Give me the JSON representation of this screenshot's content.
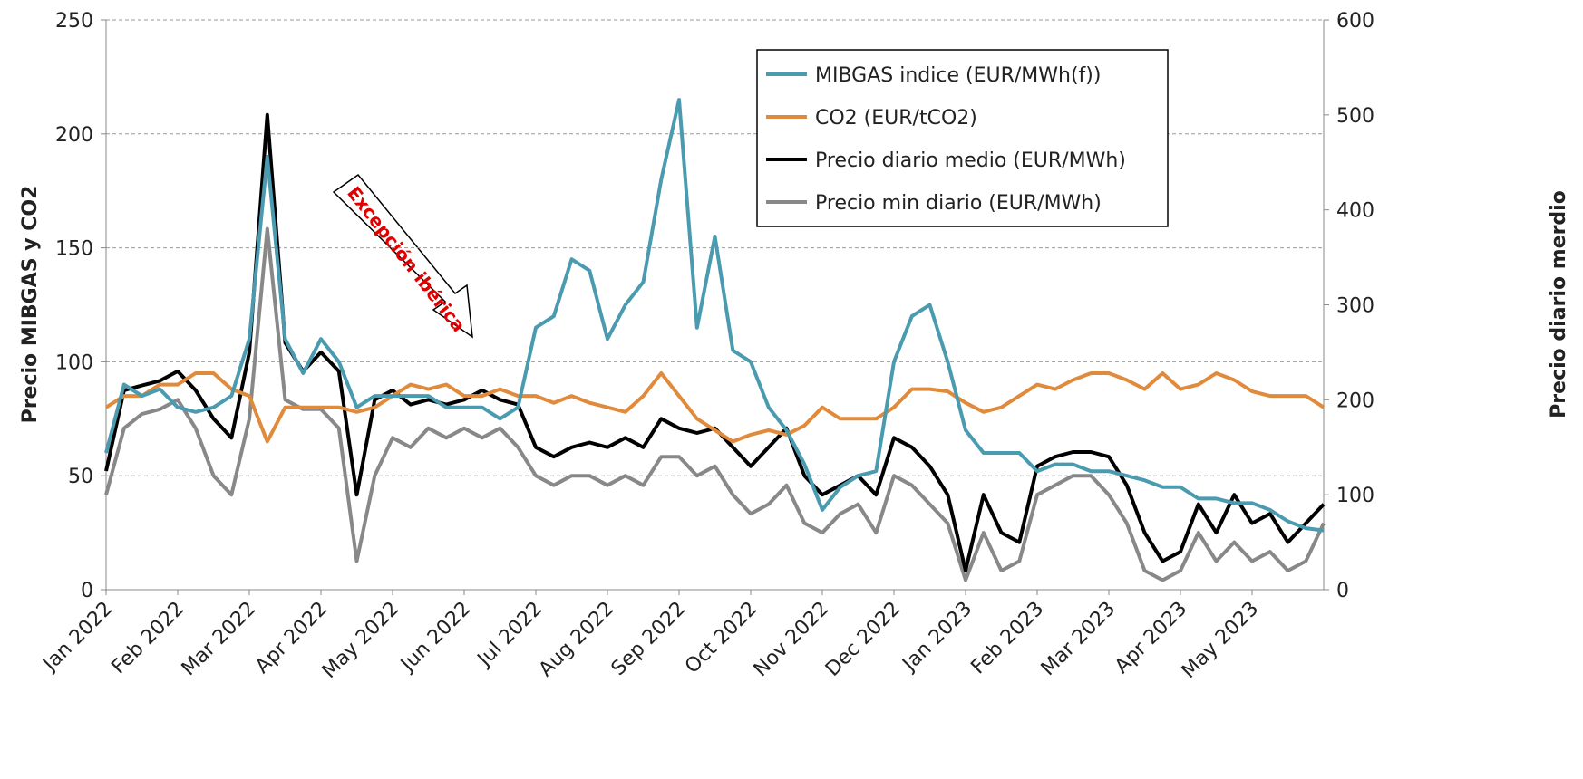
{
  "chart_data": {
    "type": "line",
    "y_label": "Precio MIBGAS y CO2",
    "y2_label": "Precio diario merdio",
    "annotation": "Excepción ibérica",
    "categories": [
      "Jan 2022",
      null,
      null,
      null,
      "Feb 2022",
      null,
      null,
      null,
      "Mar 2022",
      null,
      null,
      null,
      "Apr 2022",
      null,
      null,
      null,
      "May 2022",
      null,
      null,
      null,
      "Jun 2022",
      null,
      null,
      null,
      "Jul 2022",
      null,
      null,
      null,
      "Aug 2022",
      null,
      null,
      null,
      "Sep 2022",
      null,
      null,
      null,
      "Oct 2022",
      null,
      null,
      null,
      "Nov 2022",
      null,
      null,
      null,
      "Dec 2022",
      null,
      null,
      null,
      "Jan 2023",
      null,
      null,
      null,
      "Feb 2023",
      null,
      null,
      null,
      "Mar 2023",
      null,
      null,
      null,
      "Apr 2023",
      null,
      null,
      null,
      "May 2023",
      null,
      null,
      null,
      null
    ],
    "ylim": [
      0,
      250
    ],
    "yticks": [
      0,
      50,
      100,
      150,
      200,
      250
    ],
    "y2lim": [
      0,
      600
    ],
    "y2ticks": [
      0,
      100,
      200,
      300,
      400,
      500,
      600
    ],
    "grid": true,
    "legend": "upper right",
    "series": [
      {
        "name": "MIBGAS indice (EUR/MWh(f))",
        "color": "#4a9bb0",
        "axis": "y",
        "values": [
          60,
          90,
          85,
          88,
          80,
          78,
          80,
          85,
          110,
          190,
          110,
          95,
          110,
          100,
          80,
          85,
          85,
          85,
          85,
          80,
          80,
          80,
          75,
          80,
          115,
          120,
          145,
          140,
          110,
          125,
          135,
          180,
          215,
          115,
          155,
          105,
          100,
          80,
          70,
          55,
          35,
          45,
          50,
          52,
          100,
          120,
          125,
          100,
          70,
          60,
          60,
          60,
          52,
          55,
          55,
          52,
          52,
          50,
          48,
          45,
          45,
          40,
          40,
          38,
          38,
          35,
          30,
          27,
          26
        ]
      },
      {
        "name": "CO2 (EUR/tCO2)",
        "color": "#e08a3c",
        "axis": "y",
        "values": [
          80,
          85,
          85,
          90,
          90,
          95,
          95,
          88,
          85,
          65,
          80,
          80,
          80,
          80,
          78,
          80,
          85,
          90,
          88,
          90,
          85,
          85,
          88,
          85,
          85,
          82,
          85,
          82,
          80,
          78,
          85,
          95,
          85,
          75,
          70,
          65,
          68,
          70,
          68,
          72,
          80,
          75,
          75,
          75,
          80,
          88,
          88,
          87,
          82,
          78,
          80,
          85,
          90,
          88,
          92,
          95,
          95,
          92,
          88,
          95,
          88,
          90,
          95,
          92,
          87,
          85,
          85,
          85,
          80
        ]
      },
      {
        "name": "Precio diario medio (EUR/MWh)",
        "color": "#000000",
        "axis": "y2",
        "values": [
          125,
          210,
          215,
          220,
          230,
          210,
          180,
          160,
          250,
          500,
          260,
          230,
          250,
          230,
          100,
          200,
          210,
          195,
          200,
          195,
          200,
          210,
          200,
          195,
          150,
          140,
          150,
          155,
          150,
          160,
          150,
          180,
          170,
          165,
          170,
          150,
          130,
          150,
          170,
          120,
          100,
          110,
          120,
          100,
          160,
          150,
          130,
          100,
          20,
          100,
          60,
          50,
          130,
          140,
          145,
          145,
          140,
          110,
          60,
          30,
          40,
          90,
          60,
          100,
          70,
          80,
          50,
          70,
          90
        ]
      },
      {
        "name": "Precio min diario (EUR/MWh)",
        "color": "#888888",
        "axis": "y2",
        "values": [
          100,
          170,
          185,
          190,
          200,
          170,
          120,
          100,
          180,
          380,
          200,
          190,
          190,
          170,
          30,
          120,
          160,
          150,
          170,
          160,
          170,
          160,
          170,
          150,
          120,
          110,
          120,
          120,
          110,
          120,
          110,
          140,
          140,
          120,
          130,
          100,
          80,
          90,
          110,
          70,
          60,
          80,
          90,
          60,
          120,
          110,
          90,
          70,
          10,
          60,
          20,
          30,
          100,
          110,
          120,
          120,
          100,
          70,
          20,
          10,
          20,
          60,
          30,
          50,
          30,
          40,
          20,
          30,
          70
        ]
      }
    ]
  }
}
